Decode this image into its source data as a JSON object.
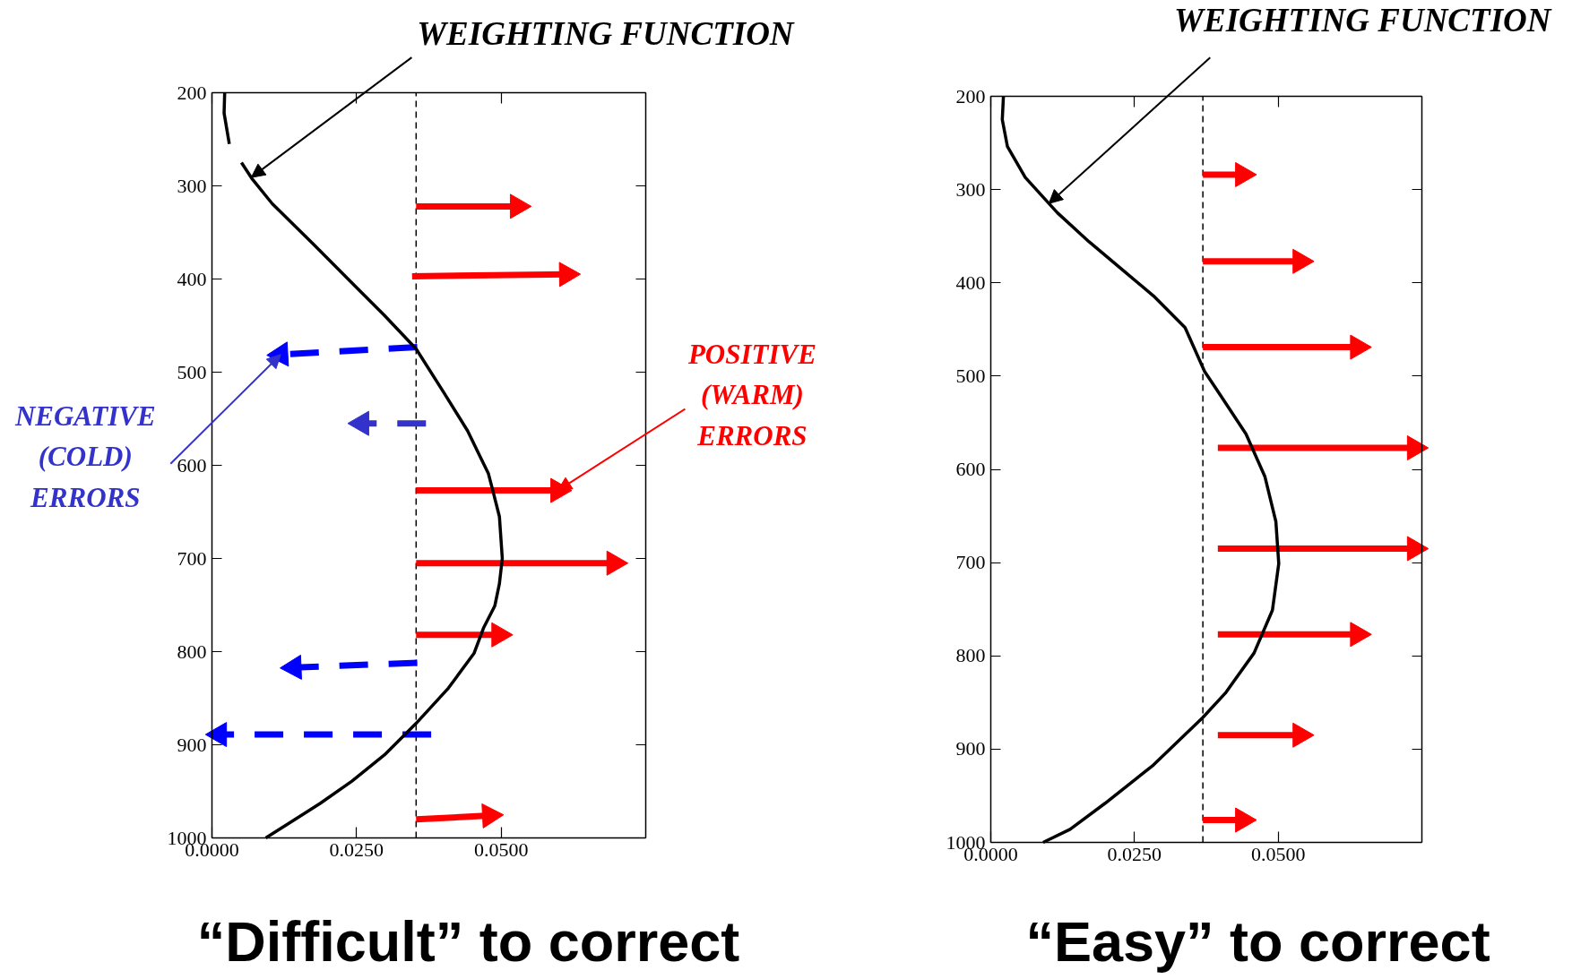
{
  "chart_data": [
    {
      "type": "line",
      "title": "“Difficult” to correct",
      "xlim": [
        0,
        0.075
      ],
      "ylim": [
        1000,
        200
      ],
      "xticks": [
        {
          "value": 0,
          "label": "0.0000"
        },
        {
          "value": 0.025,
          "label": "0.0250"
        },
        {
          "value": 0.05,
          "label": "0.0500"
        }
      ],
      "yticks": [
        200,
        300,
        400,
        500,
        600,
        700,
        800,
        900,
        1000
      ],
      "ref_lines": [
        {
          "axis": "x",
          "value": 0.0353,
          "color": "#000000",
          "line_style": "dashed"
        }
      ],
      "annotations": [
        {
          "text": "WEIGHTING FUNCTION",
          "x": 0.0068,
          "y": 291
        },
        {
          "text": "NEGATIVE\n(COLD)\nERRORS",
          "x": 0.0119,
          "y": 481
        },
        {
          "text": "POSITIVE\n(WARM)\nERRORS",
          "x": 0.0598,
          "y": 627
        }
      ],
      "series": [
        {
          "color": "#000000",
          "line_style": "solid",
          "marker": "none",
          "x": [
            0.0022,
            0.0021,
            0.003,
            0.004,
            0.0051,
            0.007,
            0.0104,
            0.0176,
            0.0253,
            0.0298,
            0.0353,
            0.04,
            0.0442,
            0.0478,
            0.0486,
            0.0497,
            0.0502,
            0.0497,
            0.0489,
            0.047,
            0.0453,
            0.0409,
            0.0353,
            0.0298,
            0.0242,
            0.0187,
            0.0131,
            0.0093
          ],
          "values": [
            200,
            222,
            255,
            null,
            275,
            293,
            319,
            363,
            411,
            439,
            475,
            521,
            563,
            609,
            628,
            655,
            700,
            727,
            751,
            774,
            802,
            839,
            877,
            911,
            939,
            963,
            985,
            1000
          ]
        },
        {
          "color": "#ff0000",
          "line_style": "solid",
          "marker": "triangle",
          "x": [
            0.0353,
            0.0528
          ],
          "values": [
            322,
            322
          ]
        },
        {
          "color": "#ff0000",
          "line_style": "solid",
          "marker": "triangle",
          "x": [
            0.0346,
            0.0613
          ],
          "values": [
            397,
            395
          ]
        },
        {
          "color": "#0000ff",
          "line_style": "dashed",
          "marker": "triangle",
          "x": [
            0.0355,
            0.0119
          ],
          "values": [
            473,
            481
          ]
        },
        {
          "color": "#3333cc",
          "line_style": "dashed",
          "marker": "triangle",
          "x": [
            0.037,
            0.0259
          ],
          "values": [
            555,
            555
          ]
        },
        {
          "color": "#ff0000",
          "line_style": "solid",
          "marker": "triangle",
          "x": [
            0.0353,
            0.0598
          ],
          "values": [
            627,
            627
          ]
        },
        {
          "color": "#ff0000",
          "line_style": "solid",
          "marker": "triangle",
          "x": [
            0.0353,
            0.0695
          ],
          "values": [
            705,
            705
          ]
        },
        {
          "color": "#ff0000",
          "line_style": "solid",
          "marker": "triangle",
          "x": [
            0.0353,
            0.0496
          ],
          "values": [
            782,
            782
          ]
        },
        {
          "color": "#0000ff",
          "line_style": "dashed",
          "marker": "triangle",
          "x": [
            0.0355,
            0.0142
          ],
          "values": [
            812,
            817
          ]
        },
        {
          "color": "#0000ff",
          "line_style": "dashed",
          "marker": "triangle",
          "x": [
            0.0379,
            0.0013
          ],
          "values": [
            889,
            889
          ]
        },
        {
          "color": "#ff0000",
          "line_style": "solid",
          "marker": "triangle",
          "x": [
            0.0353,
            0.048
          ],
          "values": [
            980,
            976
          ]
        }
      ]
    },
    {
      "type": "line",
      "title": "“Easy” to correct",
      "xlim": [
        0,
        0.075
      ],
      "ylim": [
        1000,
        200
      ],
      "xticks": [
        {
          "value": 0,
          "label": "0.0000"
        },
        {
          "value": 0.025,
          "label": "0.0250"
        },
        {
          "value": 0.05,
          "label": "0.0500"
        }
      ],
      "yticks": [
        200,
        300,
        400,
        500,
        600,
        700,
        800,
        900,
        1000
      ],
      "ref_lines": [
        {
          "axis": "x",
          "value": 0.0369,
          "color": "#000000",
          "line_style": "dashed"
        }
      ],
      "annotations": [
        {
          "text": "WEIGHTING FUNCTION",
          "x": 0.0101,
          "y": 315
        }
      ],
      "series": [
        {
          "color": "#000000",
          "line_style": "solid",
          "marker": "none",
          "x": [
            0.0022,
            0.002,
            0.0029,
            0.006,
            0.0116,
            0.0171,
            0.0227,
            0.0283,
            0.0338,
            0.0372,
            0.0399,
            0.0444,
            0.0477,
            0.0496,
            0.0501,
            0.049,
            0.0458,
            0.0408,
            0.0369,
            0.0283,
            0.0199,
            0.0138,
            0.0091
          ],
          "values": [
            200,
            225,
            254,
            287,
            325,
            356,
            385,
            414,
            448,
            495,
            520,
            562,
            608,
            656,
            701,
            751,
            797,
            840,
            866,
            917,
            958,
            986,
            1000
          ]
        },
        {
          "color": "#ff0000",
          "line_style": "solid",
          "marker": "triangle",
          "x": [
            0.0369,
            0.0438
          ],
          "values": [
            284,
            284
          ]
        },
        {
          "color": "#ff0000",
          "line_style": "solid",
          "marker": "triangle",
          "x": [
            0.0369,
            0.0538
          ],
          "values": [
            377,
            377
          ]
        },
        {
          "color": "#ff0000",
          "line_style": "solid",
          "marker": "triangle",
          "x": [
            0.0369,
            0.0638
          ],
          "values": [
            469,
            469
          ]
        },
        {
          "color": "#ff0000",
          "line_style": "solid",
          "marker": "triangle",
          "x": [
            0.0395,
            0.0737
          ],
          "values": [
            577,
            577
          ]
        },
        {
          "color": "#ff0000",
          "line_style": "solid",
          "marker": "triangle",
          "x": [
            0.0395,
            0.0737
          ],
          "values": [
            685,
            685
          ]
        },
        {
          "color": "#ff0000",
          "line_style": "solid",
          "marker": "triangle",
          "x": [
            0.0395,
            0.0638
          ],
          "values": [
            777,
            777
          ]
        },
        {
          "color": "#ff0000",
          "line_style": "solid",
          "marker": "triangle",
          "x": [
            0.0395,
            0.0538
          ],
          "values": [
            885,
            885
          ]
        },
        {
          "color": "#ff0000",
          "line_style": "solid",
          "marker": "triangle",
          "x": [
            0.0369,
            0.0438
          ],
          "values": [
            976,
            976
          ]
        }
      ]
    }
  ]
}
